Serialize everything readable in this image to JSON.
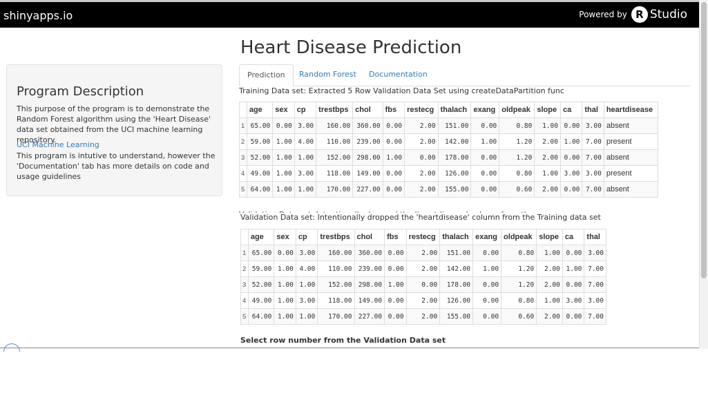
{
  "navbar": {
    "brand": "shinyapps.io",
    "powered_by": "Powered by",
    "rstudio_r": "R",
    "rstudio_text": "Studio"
  },
  "sidebar": {
    "heading": "Program Description",
    "description": "This purpose of the program is to demonstrate the Random Forest algorithm using the 'Heart Disease' data set obtained from the UCI machine learning repository.",
    "link_label": "UCI Machine Learning",
    "description2": "This program is intutive to understand, however the 'Documentation' tab has more details on code and usage guidelines"
  },
  "main": {
    "title": "Heart Disease Prediction",
    "tabs": [
      {
        "label": "Prediction",
        "active": true
      },
      {
        "label": "Random Forest",
        "active": false
      },
      {
        "label": "Documentation",
        "active": false
      }
    ],
    "training_caption": "Training Data set: Extracted 5 Row Validation Data Set using createDataPartition func",
    "training_columns": [
      "",
      "age",
      "sex",
      "cp",
      "trestbps",
      "chol",
      "fbs",
      "restecg",
      "thalach",
      "exang",
      "oldpeak",
      "slope",
      "ca",
      "thal",
      "heartdisease"
    ],
    "training_rows": [
      [
        "1",
        "65.00",
        "0.00",
        "3.00",
        "160.00",
        "360.00",
        "0.00",
        "2.00",
        "151.00",
        "0.00",
        "0.80",
        "1.00",
        "0.00",
        "3.00",
        "absent"
      ],
      [
        "2",
        "59.00",
        "1.00",
        "4.00",
        "110.00",
        "239.00",
        "0.00",
        "2.00",
        "142.00",
        "1.00",
        "1.20",
        "2.00",
        "1.00",
        "7.00",
        "present"
      ],
      [
        "3",
        "52.00",
        "1.00",
        "1.00",
        "152.00",
        "298.00",
        "1.00",
        "0.00",
        "178.00",
        "0.00",
        "1.20",
        "2.00",
        "0.00",
        "7.00",
        "absent"
      ],
      [
        "4",
        "49.00",
        "1.00",
        "3.00",
        "118.00",
        "149.00",
        "0.00",
        "2.00",
        "126.00",
        "0.00",
        "0.80",
        "1.00",
        "3.00",
        "3.00",
        "present"
      ],
      [
        "5",
        "64.00",
        "1.00",
        "1.00",
        "170.00",
        "227.00",
        "0.00",
        "2.00",
        "155.00",
        "0.00",
        "0.60",
        "2.00",
        "0.00",
        "7.00",
        "absent"
      ]
    ],
    "validation_caption": "Validation Data set: Intentionally dropped the 'heartdisease' column from the Training data set",
    "validation_columns": [
      "",
      "age",
      "sex",
      "cp",
      "trestbps",
      "chol",
      "fbs",
      "restecg",
      "thalach",
      "exang",
      "oldpeak",
      "slope",
      "ca",
      "thal"
    ],
    "validation_rows": [
      [
        "1",
        "65.00",
        "0.00",
        "3.00",
        "160.00",
        "360.00",
        "0.00",
        "2.00",
        "151.00",
        "0.00",
        "0.80",
        "1.00",
        "0.00",
        "3.00"
      ],
      [
        "2",
        "59.00",
        "1.00",
        "4.00",
        "110.00",
        "239.00",
        "0.00",
        "2.00",
        "142.00",
        "1.00",
        "1.20",
        "2.00",
        "1.00",
        "7.00"
      ],
      [
        "3",
        "52.00",
        "1.00",
        "1.00",
        "152.00",
        "298.00",
        "1.00",
        "0.00",
        "178.00",
        "0.00",
        "1.20",
        "2.00",
        "0.00",
        "7.00"
      ],
      [
        "4",
        "49.00",
        "1.00",
        "3.00",
        "118.00",
        "149.00",
        "0.00",
        "2.00",
        "126.00",
        "0.00",
        "0.80",
        "1.00",
        "3.00",
        "3.00"
      ],
      [
        "5",
        "64.00",
        "1.00",
        "1.00",
        "170.00",
        "227.00",
        "0.00",
        "2.00",
        "155.00",
        "0.00",
        "0.60",
        "2.00",
        "0.00",
        "7.00"
      ]
    ],
    "select_label": "Select row number from the Validation Data set"
  }
}
